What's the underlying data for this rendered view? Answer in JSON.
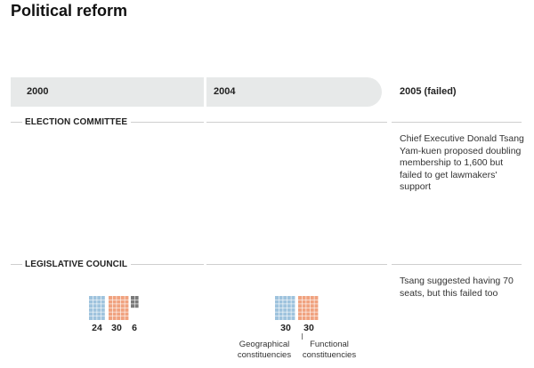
{
  "title": "Political reform",
  "years": [
    "2000",
    "2004",
    "2005 (failed)"
  ],
  "sections": {
    "election_committee": {
      "label": "ELECTION COMMITTEE",
      "note_2005": "Chief Executive Donald Tsang Yam-kuen proposed doubling membership to 1,600 but failed to get lawmakers' support"
    },
    "legislative_council": {
      "label": "LEGISLATIVE COUNCIL",
      "note_2005": "Tsang suggested having 70 seats, but this failed too"
    }
  },
  "seats_2000": [
    {
      "count": 24,
      "label": "24",
      "color": "#9ec3dd"
    },
    {
      "count": 30,
      "label": "30",
      "color": "#f0a27f"
    },
    {
      "count": 6,
      "label": "6",
      "color": "#7a7a7a"
    }
  ],
  "seats_2004": [
    {
      "count": 30,
      "label": "30",
      "color": "#9ec3dd",
      "caption": "Geographical constituencies"
    },
    {
      "count": 30,
      "label": "30",
      "color": "#f0a27f",
      "caption": "Functional constituencies"
    }
  ]
}
